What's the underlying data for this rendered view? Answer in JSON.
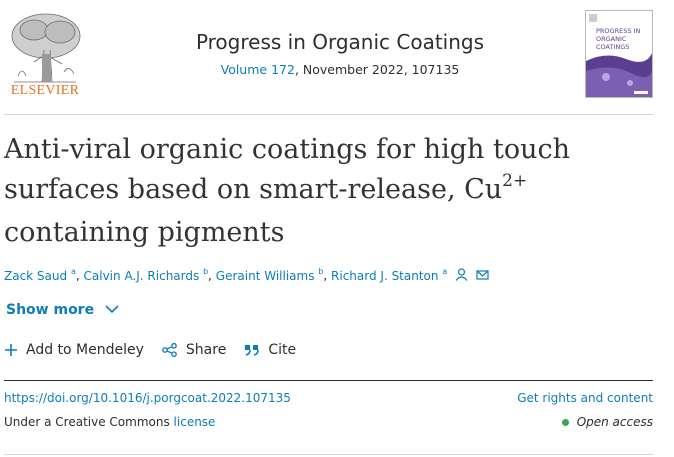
{
  "publisher": {
    "name": "ELSEVIER"
  },
  "journal": {
    "title": "Progress in Organic Coatings",
    "volume_link": "Volume 172",
    "volume_rest": ", November 2022, 107135"
  },
  "cover": {
    "line1": "PROGRESS IN",
    "line2": "ORGANIC",
    "line3": "COATINGS"
  },
  "article": {
    "title_part1": "Anti-viral organic coatings for high touch surfaces based on smart-release, Cu",
    "title_sup": "2+",
    "title_part2": " containing pigments"
  },
  "authors": [
    {
      "name": "Zack Saud",
      "aff": "a"
    },
    {
      "name": "Calvin A.J. Richards",
      "aff": "b"
    },
    {
      "name": "Geraint Williams",
      "aff": "b"
    },
    {
      "name": "Richard J. Stanton",
      "aff": "a"
    }
  ],
  "show_more": "Show more",
  "actions": {
    "mendeley": "Add to Mendeley",
    "share": "Share",
    "cite": "Cite"
  },
  "doi": "https://doi.org/10.1016/j.porgcoat.2022.107135",
  "rights": "Get rights and content",
  "license": {
    "prefix": "Under a Creative Commons ",
    "link": "license"
  },
  "access": "Open access",
  "colors": {
    "link": "#0c7dbb",
    "brand_orange": "#e9711c",
    "open_access_green": "#3fa34d"
  }
}
